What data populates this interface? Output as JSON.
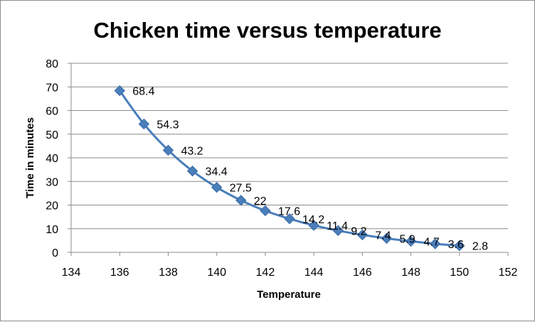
{
  "chart_data": {
    "type": "scatter",
    "title": "Chicken time versus temperature",
    "xlabel": "Temperature",
    "ylabel": "Time in minutes",
    "xlim": [
      134,
      152
    ],
    "ylim": [
      0,
      80
    ],
    "x_ticks": [
      "134",
      "136",
      "138",
      "140",
      "142",
      "144",
      "146",
      "148",
      "150",
      "152"
    ],
    "y_ticks": [
      "0",
      "10",
      "20",
      "30",
      "40",
      "50",
      "60",
      "70",
      "80"
    ],
    "grid": true,
    "legend": "none",
    "line_style": "smooth",
    "marker": "diamond",
    "color": "#4a7ebb",
    "series": [
      {
        "x": [
          136,
          137,
          138,
          139,
          140,
          141,
          142,
          143,
          144,
          145,
          146,
          147,
          148,
          149,
          150
        ],
        "y": [
          68.4,
          54.3,
          43.2,
          34.4,
          27.5,
          22,
          17.6,
          14.2,
          11.4,
          9.2,
          7.4,
          5.9,
          4.7,
          3.6,
          2.8
        ],
        "labels": [
          "68.4",
          "54.3",
          "43.2",
          "34.4",
          "27.5",
          "22",
          "17.6",
          "14.2",
          "11.4",
          "9.2",
          "7.4",
          "5.9",
          "4.7",
          "3.6",
          "2.8"
        ]
      }
    ]
  }
}
